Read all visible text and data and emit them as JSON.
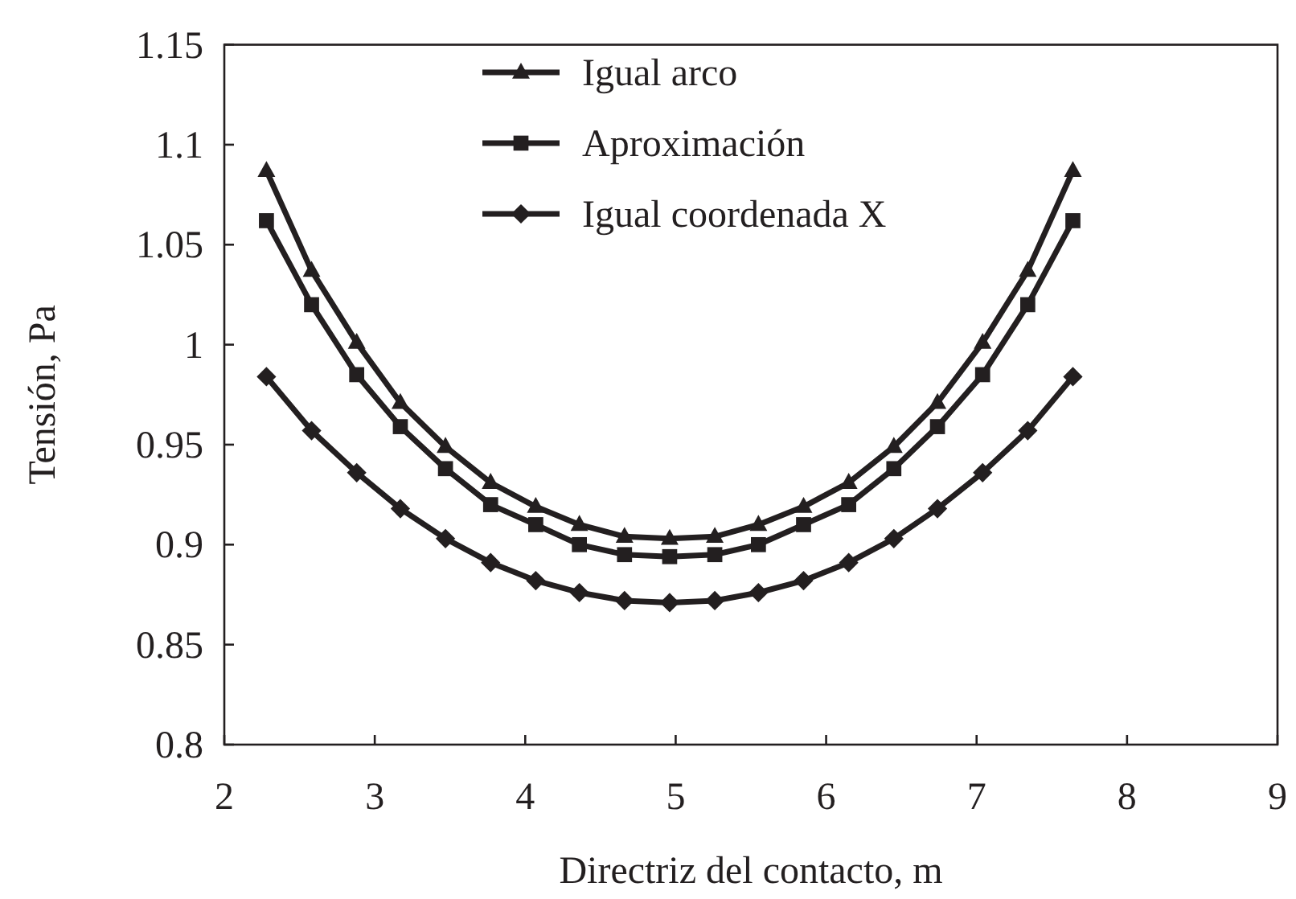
{
  "chart_data": {
    "type": "line",
    "xlabel": "Directriz del contacto, m",
    "ylabel": "Tensión, Pa",
    "x": [
      2.28,
      2.58,
      2.88,
      3.17,
      3.47,
      3.77,
      4.07,
      4.36,
      4.66,
      4.96,
      5.26,
      5.55,
      5.85,
      6.15,
      6.45,
      6.74,
      7.04,
      7.34,
      7.64
    ],
    "series": [
      {
        "name": "Igual arco",
        "color": "#231f20",
        "marker": "triangle",
        "values": [
          1.087,
          1.037,
          1.001,
          0.971,
          0.949,
          0.931,
          0.919,
          0.91,
          0.904,
          0.903,
          0.904,
          0.91,
          0.919,
          0.931,
          0.949,
          0.971,
          1.001,
          1.037,
          1.087
        ]
      },
      {
        "name": "Aproximación",
        "color": "#231f20",
        "marker": "square",
        "values": [
          1.062,
          1.02,
          0.985,
          0.959,
          0.938,
          0.92,
          0.91,
          0.9,
          0.895,
          0.894,
          0.895,
          0.9,
          0.91,
          0.92,
          0.938,
          0.959,
          0.985,
          1.02,
          1.062
        ]
      },
      {
        "name": "Igual coordenada X",
        "color": "#231f20",
        "marker": "diamond",
        "values": [
          0.984,
          0.957,
          0.936,
          0.918,
          0.903,
          0.891,
          0.882,
          0.876,
          0.872,
          0.871,
          0.872,
          0.876,
          0.882,
          0.891,
          0.903,
          0.918,
          0.936,
          0.957,
          0.984
        ]
      }
    ],
    "xlim": [
      2,
      9
    ],
    "xticks": [
      2,
      3,
      4,
      5,
      6,
      7,
      8,
      9
    ],
    "ylim": [
      0.8,
      1.15
    ],
    "yticks": [
      0.8,
      0.85,
      0.9,
      0.95,
      1,
      1.05,
      1.1,
      1.15
    ],
    "legend": "top",
    "grid": false,
    "line_style": "solid"
  }
}
